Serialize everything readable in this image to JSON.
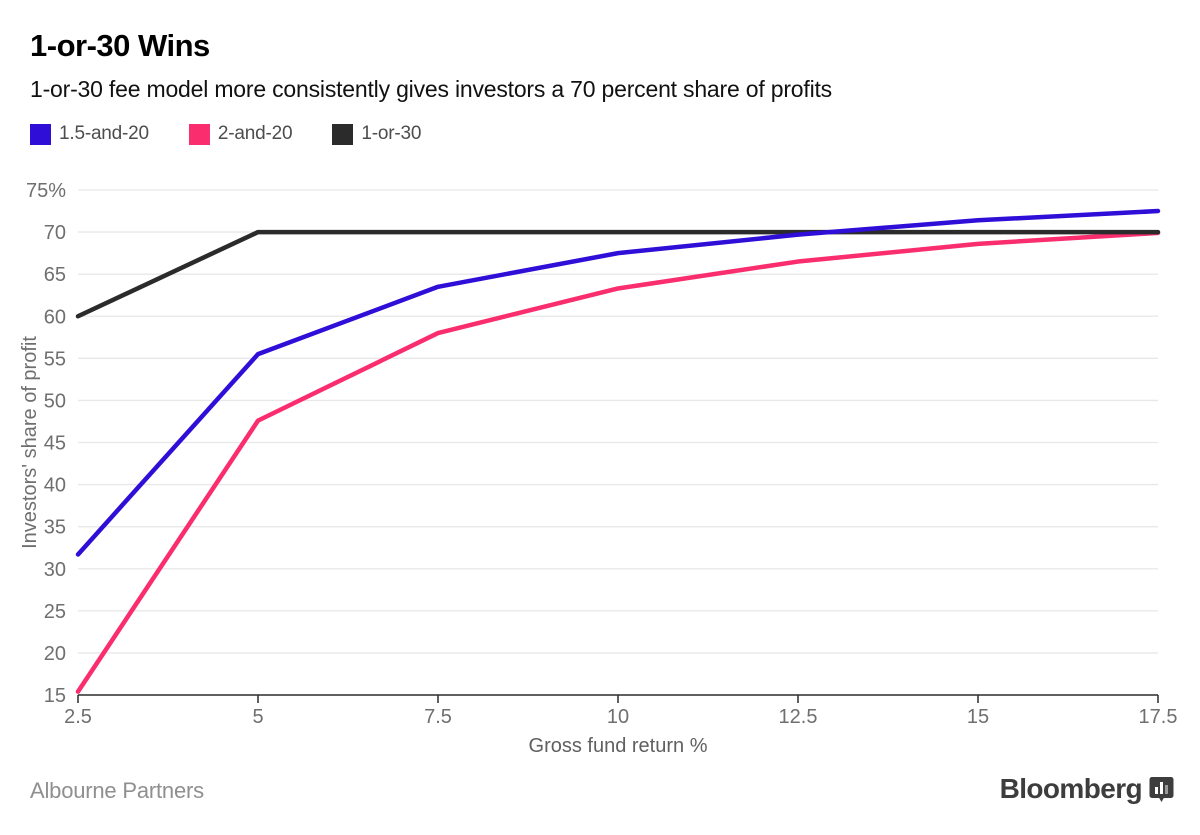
{
  "header": {
    "title": "1-or-30 Wins",
    "subtitle": "1-or-30 fee model more consistently gives investors a 70 percent share of profits"
  },
  "legend": [
    {
      "label": "1.5-and-20",
      "color": "#2f0ed8"
    },
    {
      "label": "2-and-20",
      "color": "#fa2d6e"
    },
    {
      "label": "1-or-30",
      "color": "#2b2b2b"
    }
  ],
  "chart_data": {
    "type": "line",
    "x": [
      2.5,
      5,
      7.5,
      10,
      12.5,
      15,
      17.5
    ],
    "series": [
      {
        "name": "2-and-20",
        "color": "#fa2d6e",
        "values": [
          15.4,
          47.6,
          58.0,
          63.3,
          66.5,
          68.6,
          69.9
        ]
      },
      {
        "name": "1-or-30",
        "color": "#2b2b2b",
        "values": [
          60,
          70,
          70,
          70,
          70,
          70,
          70
        ]
      },
      {
        "name": "1.5-and-20",
        "color": "#2f0ed8",
        "values": [
          31.7,
          55.5,
          63.5,
          67.5,
          69.7,
          71.4,
          72.5
        ]
      }
    ],
    "title": "1-or-30 Wins",
    "xlabel": "Gross fund return %",
    "ylabel": "Investors' share of profit",
    "xlim": [
      2.5,
      17.5
    ],
    "ylim": [
      15,
      75
    ],
    "ytick_values": [
      15,
      20,
      25,
      30,
      35,
      40,
      45,
      50,
      55,
      60,
      65,
      70,
      75
    ],
    "ytick_labels": [
      "15",
      "20",
      "25",
      "30",
      "35",
      "40",
      "45",
      "50",
      "55",
      "60",
      "65",
      "70",
      "75%"
    ],
    "xtick_labels": [
      "2.5",
      "5",
      "7.5",
      "10",
      "12.5",
      "15",
      "17.5"
    ],
    "grid": "horizontal",
    "legend_position": "top-left",
    "colors": {
      "gridline": "#e8e8e8",
      "axis_line": "#2b2b2b",
      "tick_text": "#6f6f6f",
      "axis_title_text": "#606060"
    }
  },
  "footer": {
    "source": "Albourne Partners",
    "brand": "Bloomberg"
  }
}
